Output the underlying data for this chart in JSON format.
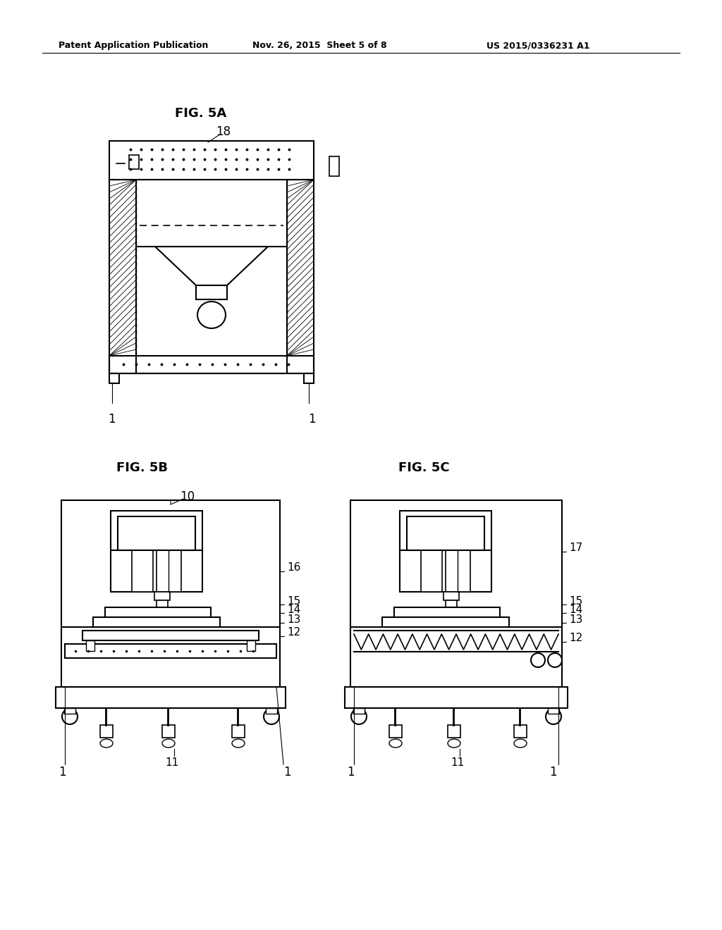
{
  "bg_color": "#ffffff",
  "text_color": "#000000",
  "header_left": "Patent Application Publication",
  "header_mid": "Nov. 26, 2015  Sheet 5 of 8",
  "header_right": "US 2015/0336231 A1",
  "fig5a_label": "FIG. 5A",
  "fig5b_label": "FIG. 5B",
  "fig5c_label": "FIG. 5C",
  "label_18": "18",
  "label_1": "1",
  "label_10": "10",
  "label_11": "11",
  "label_12": "12",
  "label_13": "13",
  "label_14": "14",
  "label_15": "15",
  "label_16": "16",
  "label_17": "17"
}
